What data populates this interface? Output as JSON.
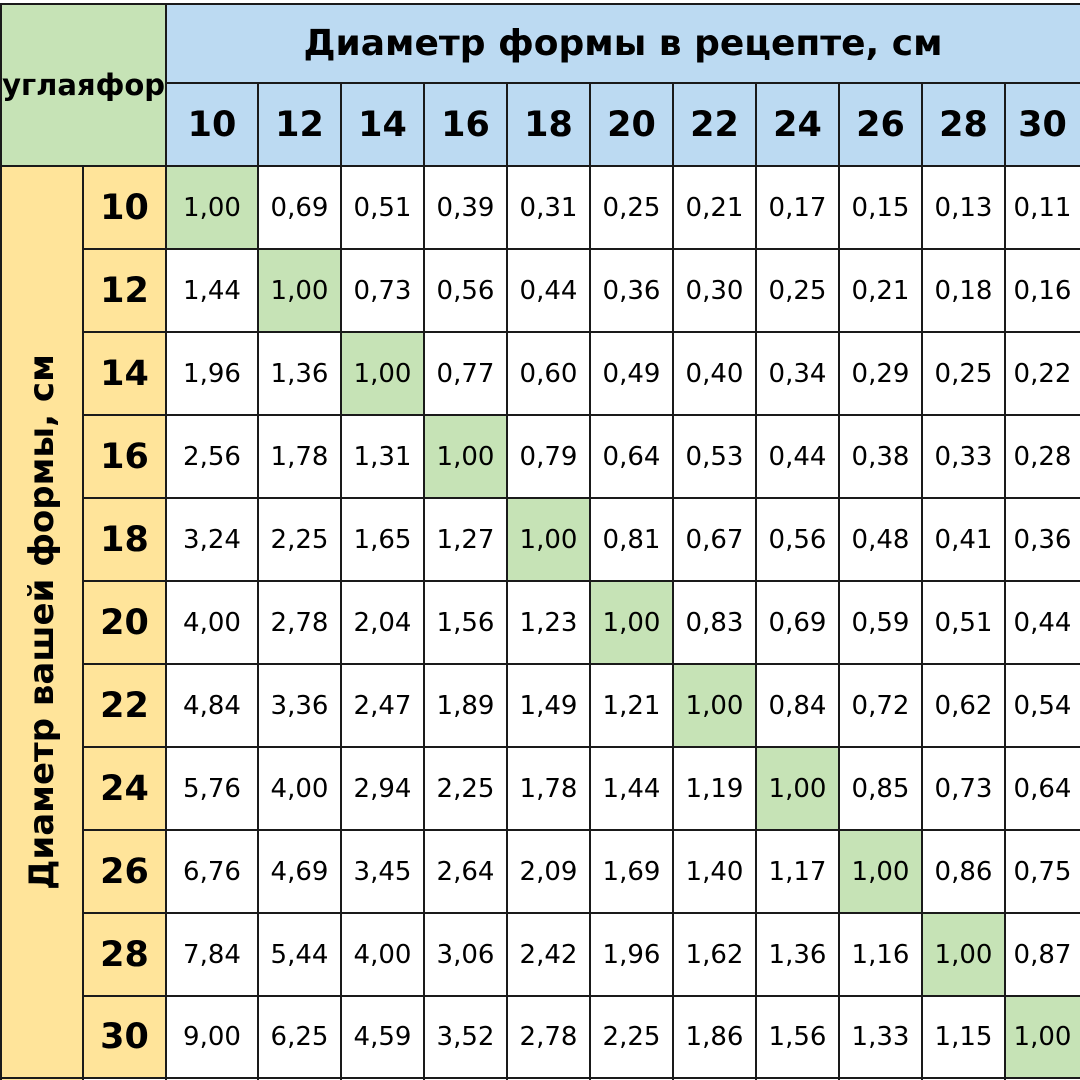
{
  "corner_label": [
    "Круглая",
    "форма"
  ],
  "column_group_title": "Диаметр формы в рецепте, см",
  "row_group_title": "Диаметр вашей формы, см",
  "colors": {
    "header_blue": "#bcdaf2",
    "row_header_yellow": "#ffe49a",
    "corner_green": "#c6e3b6",
    "diagonal_green": "#c6e3b6",
    "grid_line": "#1a1a1a"
  },
  "recipe_diameters": [
    "10",
    "12",
    "14",
    "16",
    "18",
    "20",
    "22",
    "24",
    "26",
    "28",
    "30"
  ],
  "your_diameters": [
    "10",
    "12",
    "14",
    "16",
    "18",
    "20",
    "22",
    "24",
    "26",
    "28",
    "30"
  ],
  "rows": [
    [
      "1,00",
      "0,69",
      "0,51",
      "0,39",
      "0,31",
      "0,25",
      "0,21",
      "0,17",
      "0,15",
      "0,13",
      "0,11"
    ],
    [
      "1,44",
      "1,00",
      "0,73",
      "0,56",
      "0,44",
      "0,36",
      "0,30",
      "0,25",
      "0,21",
      "0,18",
      "0,16"
    ],
    [
      "1,96",
      "1,36",
      "1,00",
      "0,77",
      "0,60",
      "0,49",
      "0,40",
      "0,34",
      "0,29",
      "0,25",
      "0,22"
    ],
    [
      "2,56",
      "1,78",
      "1,31",
      "1,00",
      "0,79",
      "0,64",
      "0,53",
      "0,44",
      "0,38",
      "0,33",
      "0,28"
    ],
    [
      "3,24",
      "2,25",
      "1,65",
      "1,27",
      "1,00",
      "0,81",
      "0,67",
      "0,56",
      "0,48",
      "0,41",
      "0,36"
    ],
    [
      "4,00",
      "2,78",
      "2,04",
      "1,56",
      "1,23",
      "1,00",
      "0,83",
      "0,69",
      "0,59",
      "0,51",
      "0,44"
    ],
    [
      "4,84",
      "3,36",
      "2,47",
      "1,89",
      "1,49",
      "1,21",
      "1,00",
      "0,84",
      "0,72",
      "0,62",
      "0,54"
    ],
    [
      "5,76",
      "4,00",
      "2,94",
      "2,25",
      "1,78",
      "1,44",
      "1,19",
      "1,00",
      "0,85",
      "0,73",
      "0,64"
    ],
    [
      "6,76",
      "4,69",
      "3,45",
      "2,64",
      "2,09",
      "1,69",
      "1,40",
      "1,17",
      "1,00",
      "0,86",
      "0,75"
    ],
    [
      "7,84",
      "5,44",
      "4,00",
      "3,06",
      "2,42",
      "1,96",
      "1,62",
      "1,36",
      "1,16",
      "1,00",
      "0,87"
    ],
    [
      "9,00",
      "6,25",
      "4,59",
      "3,52",
      "2,78",
      "2,25",
      "1,86",
      "1,56",
      "1,33",
      "1,15",
      "1,00"
    ]
  ]
}
